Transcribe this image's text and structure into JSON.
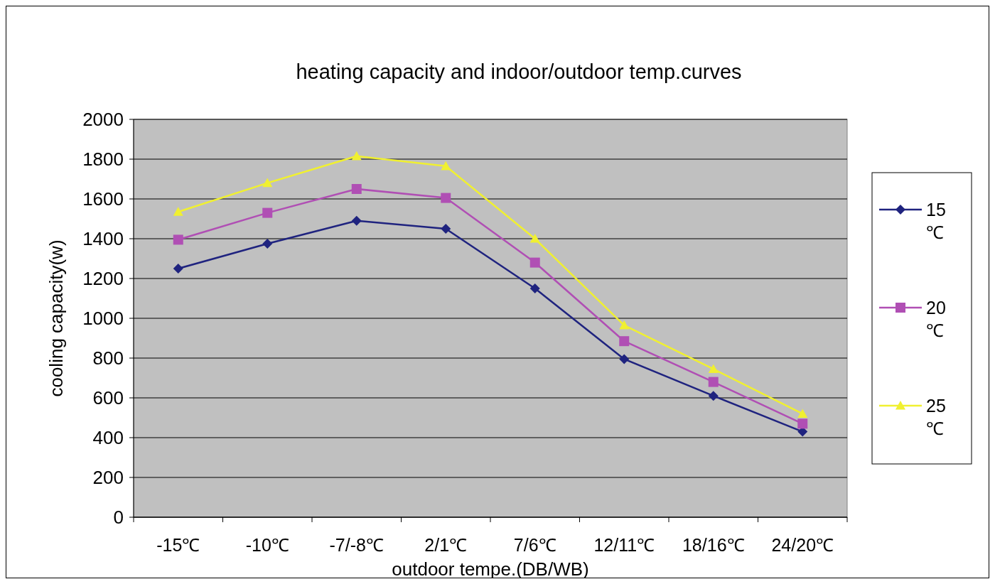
{
  "chart_data": {
    "type": "line",
    "title": "heating capacity and indoor/outdoor temp.curves",
    "xlabel": "outdoor tempe.(DB/WB)",
    "ylabel": "cooling capacity(w)",
    "categories": [
      "-15℃",
      "-10℃",
      "-7/-8℃",
      "2/1℃",
      "7/6℃",
      "12/11℃",
      "18/16℃",
      "24/20℃"
    ],
    "series": [
      {
        "name": "15 ℃",
        "color": "#1f237f",
        "marker": "diamond",
        "values": [
          1250,
          1375,
          1490,
          1450,
          1150,
          795,
          610,
          430
        ]
      },
      {
        "name": "20 ℃",
        "color": "#b04fb4",
        "marker": "square",
        "values": [
          1395,
          1530,
          1650,
          1605,
          1280,
          885,
          680,
          470
        ]
      },
      {
        "name": "25 ℃",
        "color": "#f0f030",
        "marker": "triangle",
        "values": [
          1535,
          1680,
          1815,
          1765,
          1400,
          965,
          745,
          520
        ]
      }
    ],
    "ylim": [
      0,
      2000
    ],
    "yticks": [
      0,
      200,
      400,
      600,
      800,
      1000,
      1200,
      1400,
      1600,
      1800,
      2000
    ],
    "grid": "y",
    "legend": "right"
  }
}
